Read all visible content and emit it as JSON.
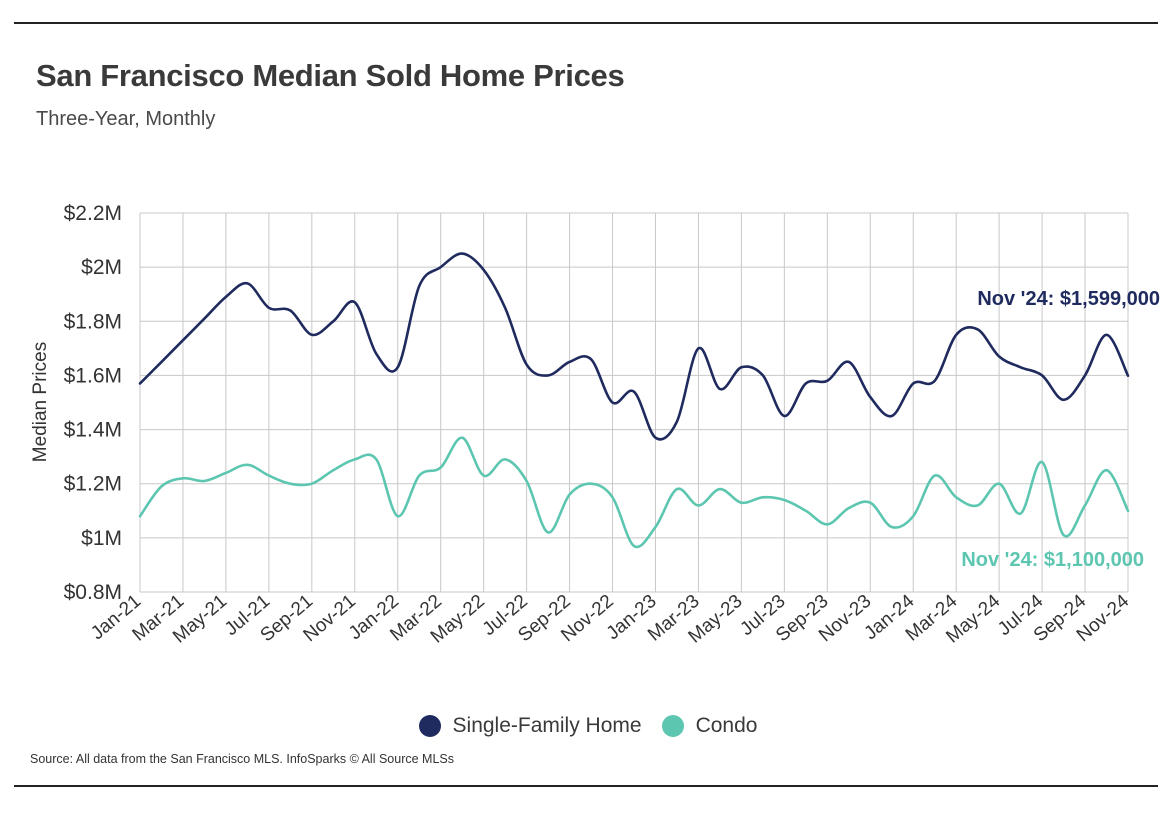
{
  "header": {
    "title": "San Francisco Median Sold Home Prices",
    "subtitle": "Three-Year, Monthly"
  },
  "footer": {
    "source": "Source:  All data from the San Francisco MLS. InfoSparks © All Source MLSs"
  },
  "colors": {
    "single_family": "#1f2a5e",
    "condo": "#5cc6b0",
    "grid": "#c8c8c8",
    "axis_text": "#333333"
  },
  "chart_data": {
    "type": "line",
    "title": "San Francisco Median Sold Home Prices",
    "subtitle": "Three-Year, Monthly",
    "xlabel": "",
    "ylabel": "Median Prices",
    "ylim": [
      800000,
      2200000
    ],
    "y_ticks": [
      800000,
      1000000,
      1200000,
      1400000,
      1600000,
      1800000,
      2000000,
      2200000
    ],
    "y_tick_labels": [
      "$0.8M",
      "$1M",
      "$1.2M",
      "$1.4M",
      "$1.6M",
      "$1.8M",
      "$2M",
      "$2.2M"
    ],
    "grid": true,
    "legend_position": "bottom",
    "x": [
      "Jan-21",
      "Feb-21",
      "Mar-21",
      "Apr-21",
      "May-21",
      "Jun-21",
      "Jul-21",
      "Aug-21",
      "Sep-21",
      "Oct-21",
      "Nov-21",
      "Dec-21",
      "Jan-22",
      "Feb-22",
      "Mar-22",
      "Apr-22",
      "May-22",
      "Jun-22",
      "Jul-22",
      "Aug-22",
      "Sep-22",
      "Oct-22",
      "Nov-22",
      "Dec-22",
      "Jan-23",
      "Feb-23",
      "Mar-23",
      "Apr-23",
      "May-23",
      "Jun-23",
      "Jul-23",
      "Aug-23",
      "Sep-23",
      "Oct-23",
      "Nov-23",
      "Dec-23",
      "Jan-24",
      "Feb-24",
      "Mar-24",
      "Apr-24",
      "May-24",
      "Jun-24",
      "Jul-24",
      "Aug-24",
      "Sep-24",
      "Oct-24",
      "Nov-24"
    ],
    "x_tick_labels": [
      "Jan-21",
      "Mar-21",
      "May-21",
      "Jul-21",
      "Sep-21",
      "Nov-21",
      "Jan-22",
      "Mar-22",
      "May-22",
      "Jul-22",
      "Sep-22",
      "Nov-22",
      "Jan-23",
      "Mar-23",
      "May-23",
      "Jul-23",
      "Sep-23",
      "Nov-23",
      "Jan-24",
      "Mar-24",
      "May-24",
      "Jul-24",
      "Sep-24",
      "Nov-24"
    ],
    "series": [
      {
        "name": "Single-Family Home",
        "color": "#1f2a5e",
        "values": [
          1570000,
          1650000,
          1730000,
          1810000,
          1890000,
          1940000,
          1850000,
          1840000,
          1750000,
          1800000,
          1870000,
          1680000,
          1630000,
          1930000,
          2000000,
          2050000,
          1990000,
          1850000,
          1640000,
          1600000,
          1650000,
          1660000,
          1500000,
          1540000,
          1370000,
          1430000,
          1700000,
          1550000,
          1630000,
          1600000,
          1450000,
          1570000,
          1580000,
          1650000,
          1520000,
          1450000,
          1570000,
          1580000,
          1750000,
          1770000,
          1670000,
          1630000,
          1600000,
          1510000,
          1600000,
          1750000,
          1599000
        ],
        "end_label": "Nov '24: $1,599,000"
      },
      {
        "name": "Condo",
        "color": "#5cc6b0",
        "values": [
          1080000,
          1190000,
          1220000,
          1210000,
          1240000,
          1270000,
          1230000,
          1200000,
          1200000,
          1250000,
          1290000,
          1290000,
          1080000,
          1230000,
          1260000,
          1370000,
          1230000,
          1290000,
          1210000,
          1020000,
          1160000,
          1200000,
          1150000,
          970000,
          1040000,
          1180000,
          1120000,
          1180000,
          1130000,
          1150000,
          1140000,
          1100000,
          1050000,
          1110000,
          1130000,
          1040000,
          1080000,
          1230000,
          1150000,
          1120000,
          1200000,
          1090000,
          1280000,
          1010000,
          1120000,
          1250000,
          1100000
        ],
        "end_label": "Nov '24: $1,100,000"
      }
    ]
  }
}
